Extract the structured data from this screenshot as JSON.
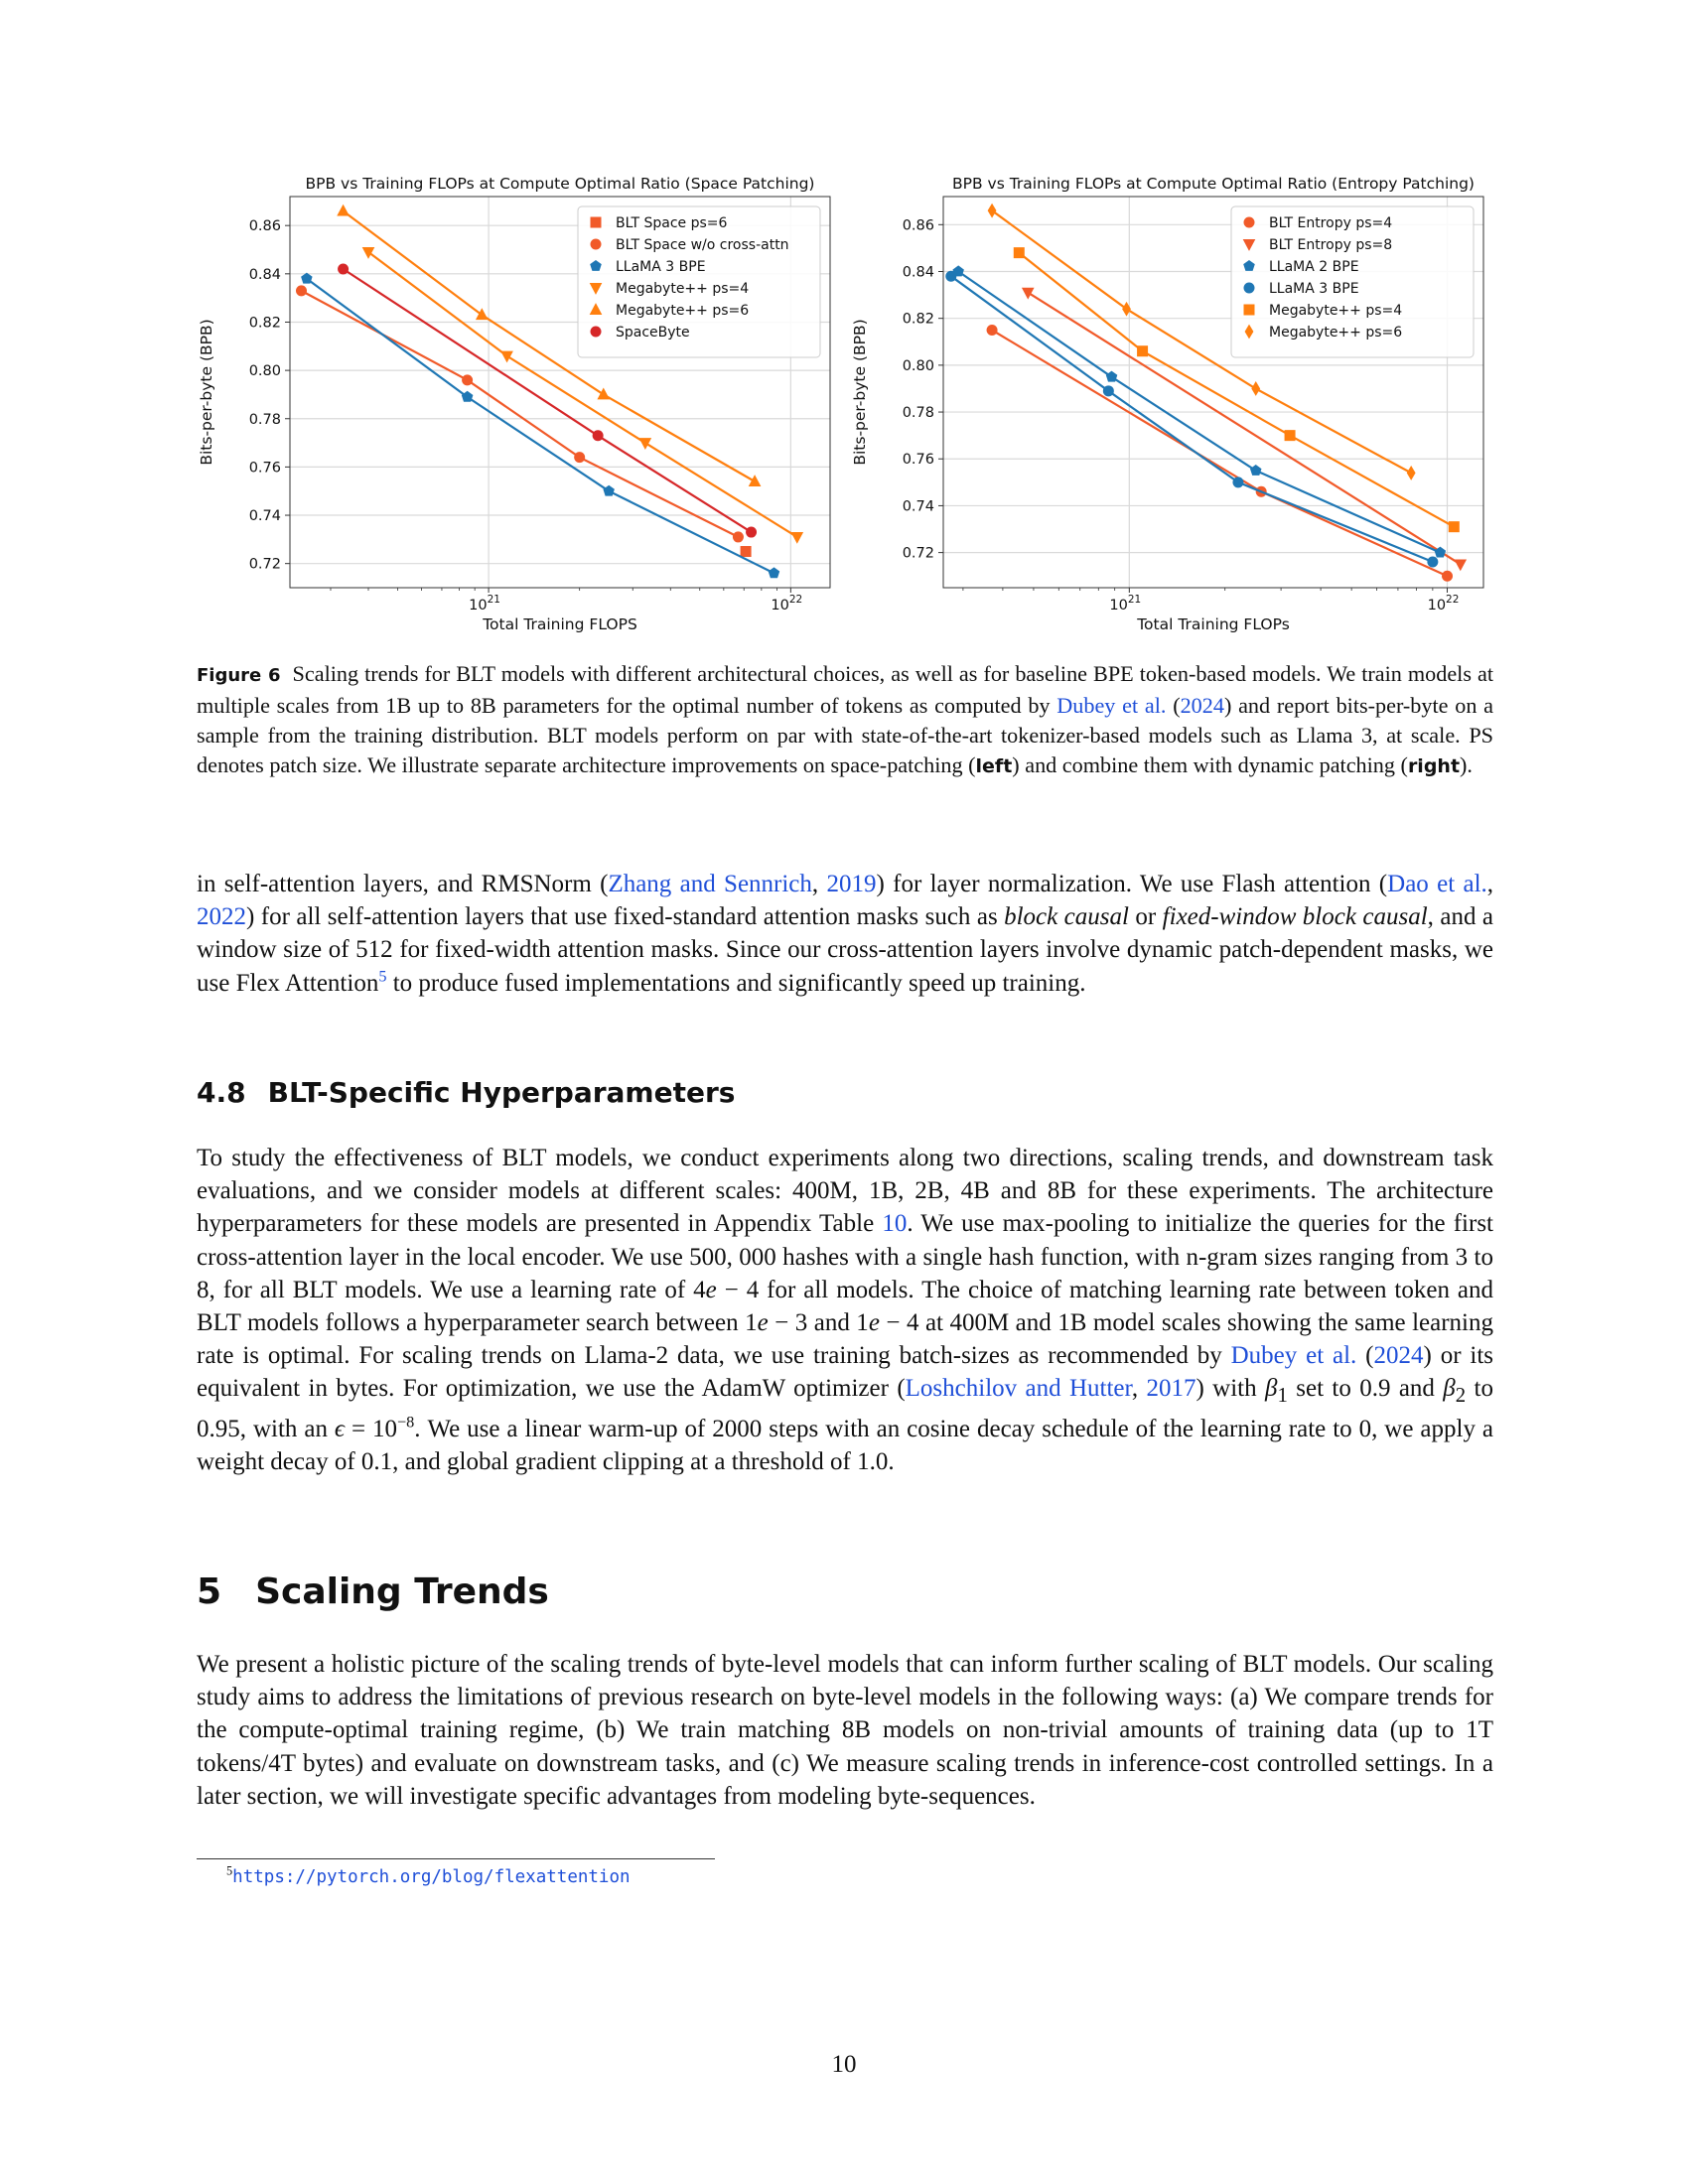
{
  "chart_data": [
    {
      "type": "scatter",
      "title": "BPB vs Training FLOPs at Compute Optimal Ratio (Space Patching)",
      "xlabel": "Total Training FLOPS",
      "ylabel": "Bits-per-byte (BPB)",
      "xscale": "log",
      "xlim": [
        2.2e+20,
        1.35e+22
      ],
      "ylim": [
        0.71,
        0.872
      ],
      "x_ticks": [
        1e+21,
        1e+22
      ],
      "x_tick_labels": [
        "10",
        "10"
      ],
      "x_tick_exponents": [
        "21",
        "22"
      ],
      "y_ticks": [
        0.72,
        0.74,
        0.76,
        0.78,
        0.8,
        0.82,
        0.84,
        0.86
      ],
      "y_tick_labels": [
        "0.72",
        "0.74",
        "0.76",
        "0.78",
        "0.80",
        "0.82",
        "0.84",
        "0.86"
      ],
      "grid": true,
      "legend_position": "top-right",
      "series": [
        {
          "name": "BLT Space ps=6",
          "marker": "square",
          "color": "#f15a29",
          "line": false,
          "x": [
            7.1e+21
          ],
          "y": [
            0.725
          ]
        },
        {
          "name": "BLT Space w/o cross-attn",
          "marker": "circle",
          "color": "#f15a29",
          "line": true,
          "x": [
            2.4e+20,
            8.5e+20,
            2e+21,
            6.7e+21
          ],
          "y": [
            0.833,
            0.796,
            0.764,
            0.731
          ]
        },
        {
          "name": "LLaMA 3 BPE",
          "marker": "pentagon",
          "color": "#1f77b4",
          "line": true,
          "x": [
            2.5e+20,
            8.5e+20,
            2.5e+21,
            8.8e+21
          ],
          "y": [
            0.838,
            0.789,
            0.75,
            0.716
          ]
        },
        {
          "name": "Megabyte++ ps=4",
          "marker": "triangle-down",
          "color": "#ff7f0e",
          "line": true,
          "x": [
            4e+20,
            1.15e+21,
            3.3e+21,
            1.05e+22
          ],
          "y": [
            0.849,
            0.806,
            0.77,
            0.731
          ]
        },
        {
          "name": "Megabyte++ ps=6",
          "marker": "triangle-up",
          "color": "#ff7f0e",
          "line": true,
          "x": [
            3.3e+20,
            9.5e+20,
            2.4e+21,
            7.6e+21
          ],
          "y": [
            0.866,
            0.823,
            0.79,
            0.754
          ]
        },
        {
          "name": "SpaceByte",
          "marker": "circle",
          "color": "#d62728",
          "line": true,
          "x": [
            3.3e+20,
            2.3e+21,
            7.4e+21
          ],
          "y": [
            0.842,
            0.773,
            0.733
          ]
        }
      ]
    },
    {
      "type": "scatter",
      "title": "BPB vs Training FLOPs at Compute Optimal Ratio (Entropy Patching)",
      "xlabel": "Total Training FLOPs",
      "ylabel": "Bits-per-byte (BPB)",
      "xscale": "log",
      "xlim": [
        2.6e+20,
        1.3e+22
      ],
      "ylim": [
        0.705,
        0.872
      ],
      "x_ticks": [
        1e+21,
        1e+22
      ],
      "x_tick_labels": [
        "10",
        "10"
      ],
      "x_tick_exponents": [
        "21",
        "22"
      ],
      "y_ticks": [
        0.72,
        0.74,
        0.76,
        0.78,
        0.8,
        0.82,
        0.84,
        0.86
      ],
      "y_tick_labels": [
        "0.72",
        "0.74",
        "0.76",
        "0.78",
        "0.80",
        "0.82",
        "0.84",
        "0.86"
      ],
      "grid": true,
      "legend_position": "top-right",
      "series": [
        {
          "name": "BLT Entropy ps=4",
          "marker": "circle",
          "color": "#f15a29",
          "line": true,
          "x": [
            3.7e+20,
            2.6e+21,
            1e+22
          ],
          "y": [
            0.815,
            0.746,
            0.71
          ]
        },
        {
          "name": "BLT Entropy ps=8",
          "marker": "triangle-down",
          "color": "#f15a29",
          "line": true,
          "x": [
            4.8e+20,
            1.1e+22
          ],
          "y": [
            0.831,
            0.715
          ]
        },
        {
          "name": "LLaMA 2 BPE",
          "marker": "pentagon",
          "color": "#1f77b4",
          "line": true,
          "x": [
            2.9e+20,
            8.8e+20,
            2.5e+21,
            9.5e+21
          ],
          "y": [
            0.84,
            0.795,
            0.755,
            0.72
          ]
        },
        {
          "name": "LLaMA 3 BPE",
          "marker": "circle",
          "color": "#1f77b4",
          "line": true,
          "x": [
            2.75e+20,
            8.6e+20,
            2.2e+21,
            9e+21
          ],
          "y": [
            0.838,
            0.789,
            0.75,
            0.716
          ]
        },
        {
          "name": "Megabyte++ ps=4",
          "marker": "square",
          "color": "#ff7f0e",
          "line": true,
          "x": [
            4.5e+20,
            1.1e+21,
            3.2e+21,
            1.05e+22
          ],
          "y": [
            0.848,
            0.806,
            0.77,
            0.731
          ]
        },
        {
          "name": "Megabyte++ ps=6",
          "marker": "diamond",
          "color": "#ff7f0e",
          "line": true,
          "x": [
            3.7e+20,
            9.8e+20,
            2.5e+21,
            7.7e+21
          ],
          "y": [
            0.866,
            0.824,
            0.79,
            0.754
          ]
        }
      ]
    }
  ],
  "caption": {
    "label": "Figure 6",
    "part1": "Scaling trends for BLT models with different architectural choices, as well as for baseline BPE token-based models. We train models at multiple scales from 1B up to 8B parameters for the optimal number of tokens as computed by ",
    "cite_author": "Dubey et al.",
    "cite_open": " (",
    "cite_year": "2024",
    "part2": ") and report bits-per-byte on a sample from the training distribution. BLT models perform on par with state-of-the-art tokenizer-based models such as Llama 3, at scale. PS denotes patch size. We illustrate separate architecture improvements on space-patching (",
    "left_word": "left",
    "part3": ") and combine them with dynamic patching (",
    "right_word": "right",
    "part4": ")."
  },
  "para1": {
    "t1": "in self-attention layers, and RMSNorm (",
    "c1": "Zhang and Sennrich",
    "t2": ", ",
    "c1y": "2019",
    "t3": ") for layer normalization. We use Flash attention (",
    "c2": "Dao et al.",
    "t4": ", ",
    "c2y": "2022",
    "t5": ") for all self-attention layers that use fixed-standard attention masks such as ",
    "i1": "block causal",
    "t6": " or ",
    "i2": "fixed-window block causal",
    "t7": ", and a window size of 512 for fixed-width attention masks. Since our cross-attention layers involve dynamic patch-dependent masks, we use Flex Attention",
    "sup": "5",
    "t8": " to produce fused implementations and significantly speed up training."
  },
  "section48": {
    "number": "4.8",
    "title": "BLT-Specific Hyperparameters"
  },
  "para2": {
    "t1": "To study the effectiveness of BLT models, we conduct experiments along two directions, scaling trends, and downstream task evaluations, and we consider models at different scales: 400M, 1B, 2B, 4B and 8B for these experiments. The architecture hyperparameters for these models are presented in Appendix Table ",
    "ref": "10",
    "t2": ". We use max-pooling to initialize the queries for the first cross-attention layer in the local encoder. We use 500, 000 hashes with a single hash function, with n-gram sizes ranging from 3 to 8, for all BLT models. We use a learning rate of 4",
    "e1": "e",
    "t3": " − 4 for all models. The choice of matching learning rate between token and BLT models follows a hyperparameter search between 1",
    "e2": "e",
    "t4": " − 3 and 1",
    "e3": "e",
    "t5": " − 4 at 400M and 1B model scales showing the same learning rate is optimal. For scaling trends on Llama-2 data, we use training batch-sizes as recommended by ",
    "c1": "Dubey et al.",
    "t6": " (",
    "c1y": "2024",
    "t7": ") or its equivalent in bytes. For optimization, we use the AdamW optimizer (",
    "c2": "Loshchilov and Hutter",
    "t8": ", ",
    "c2y": "2017",
    "t9": ") with ",
    "beta": "β",
    "b1": "1",
    "t10": " set to 0.9 and ",
    "b2": "2",
    "t11": " to 0.95, with an ",
    "eps": "ϵ",
    "t12": " = 10",
    "exp": "−8",
    "t13": ". We use a linear warm-up of 2000 steps with an cosine decay schedule of the learning rate to 0, we apply a weight decay of 0.1, and global gradient clipping at a threshold of 1.0."
  },
  "section5": {
    "number": "5",
    "title": "Scaling Trends"
  },
  "para3": {
    "text": "We present a holistic picture of the scaling trends of byte-level models that can inform further scaling of BLT models. Our scaling study aims to address the limitations of previous research on byte-level models  in the following ways: (a) We compare trends for the compute-optimal training regime, (b) We train matching 8B models on non-trivial amounts of training data (up to 1T tokens/4T bytes) and evaluate on downstream tasks, and (c) We measure scaling trends in inference-cost controlled settings. In a later section, we will investigate specific advantages from modeling byte-sequences."
  },
  "footnote": {
    "number": "5",
    "url": "https://pytorch.org/blog/flexattention"
  },
  "page_number": "10"
}
